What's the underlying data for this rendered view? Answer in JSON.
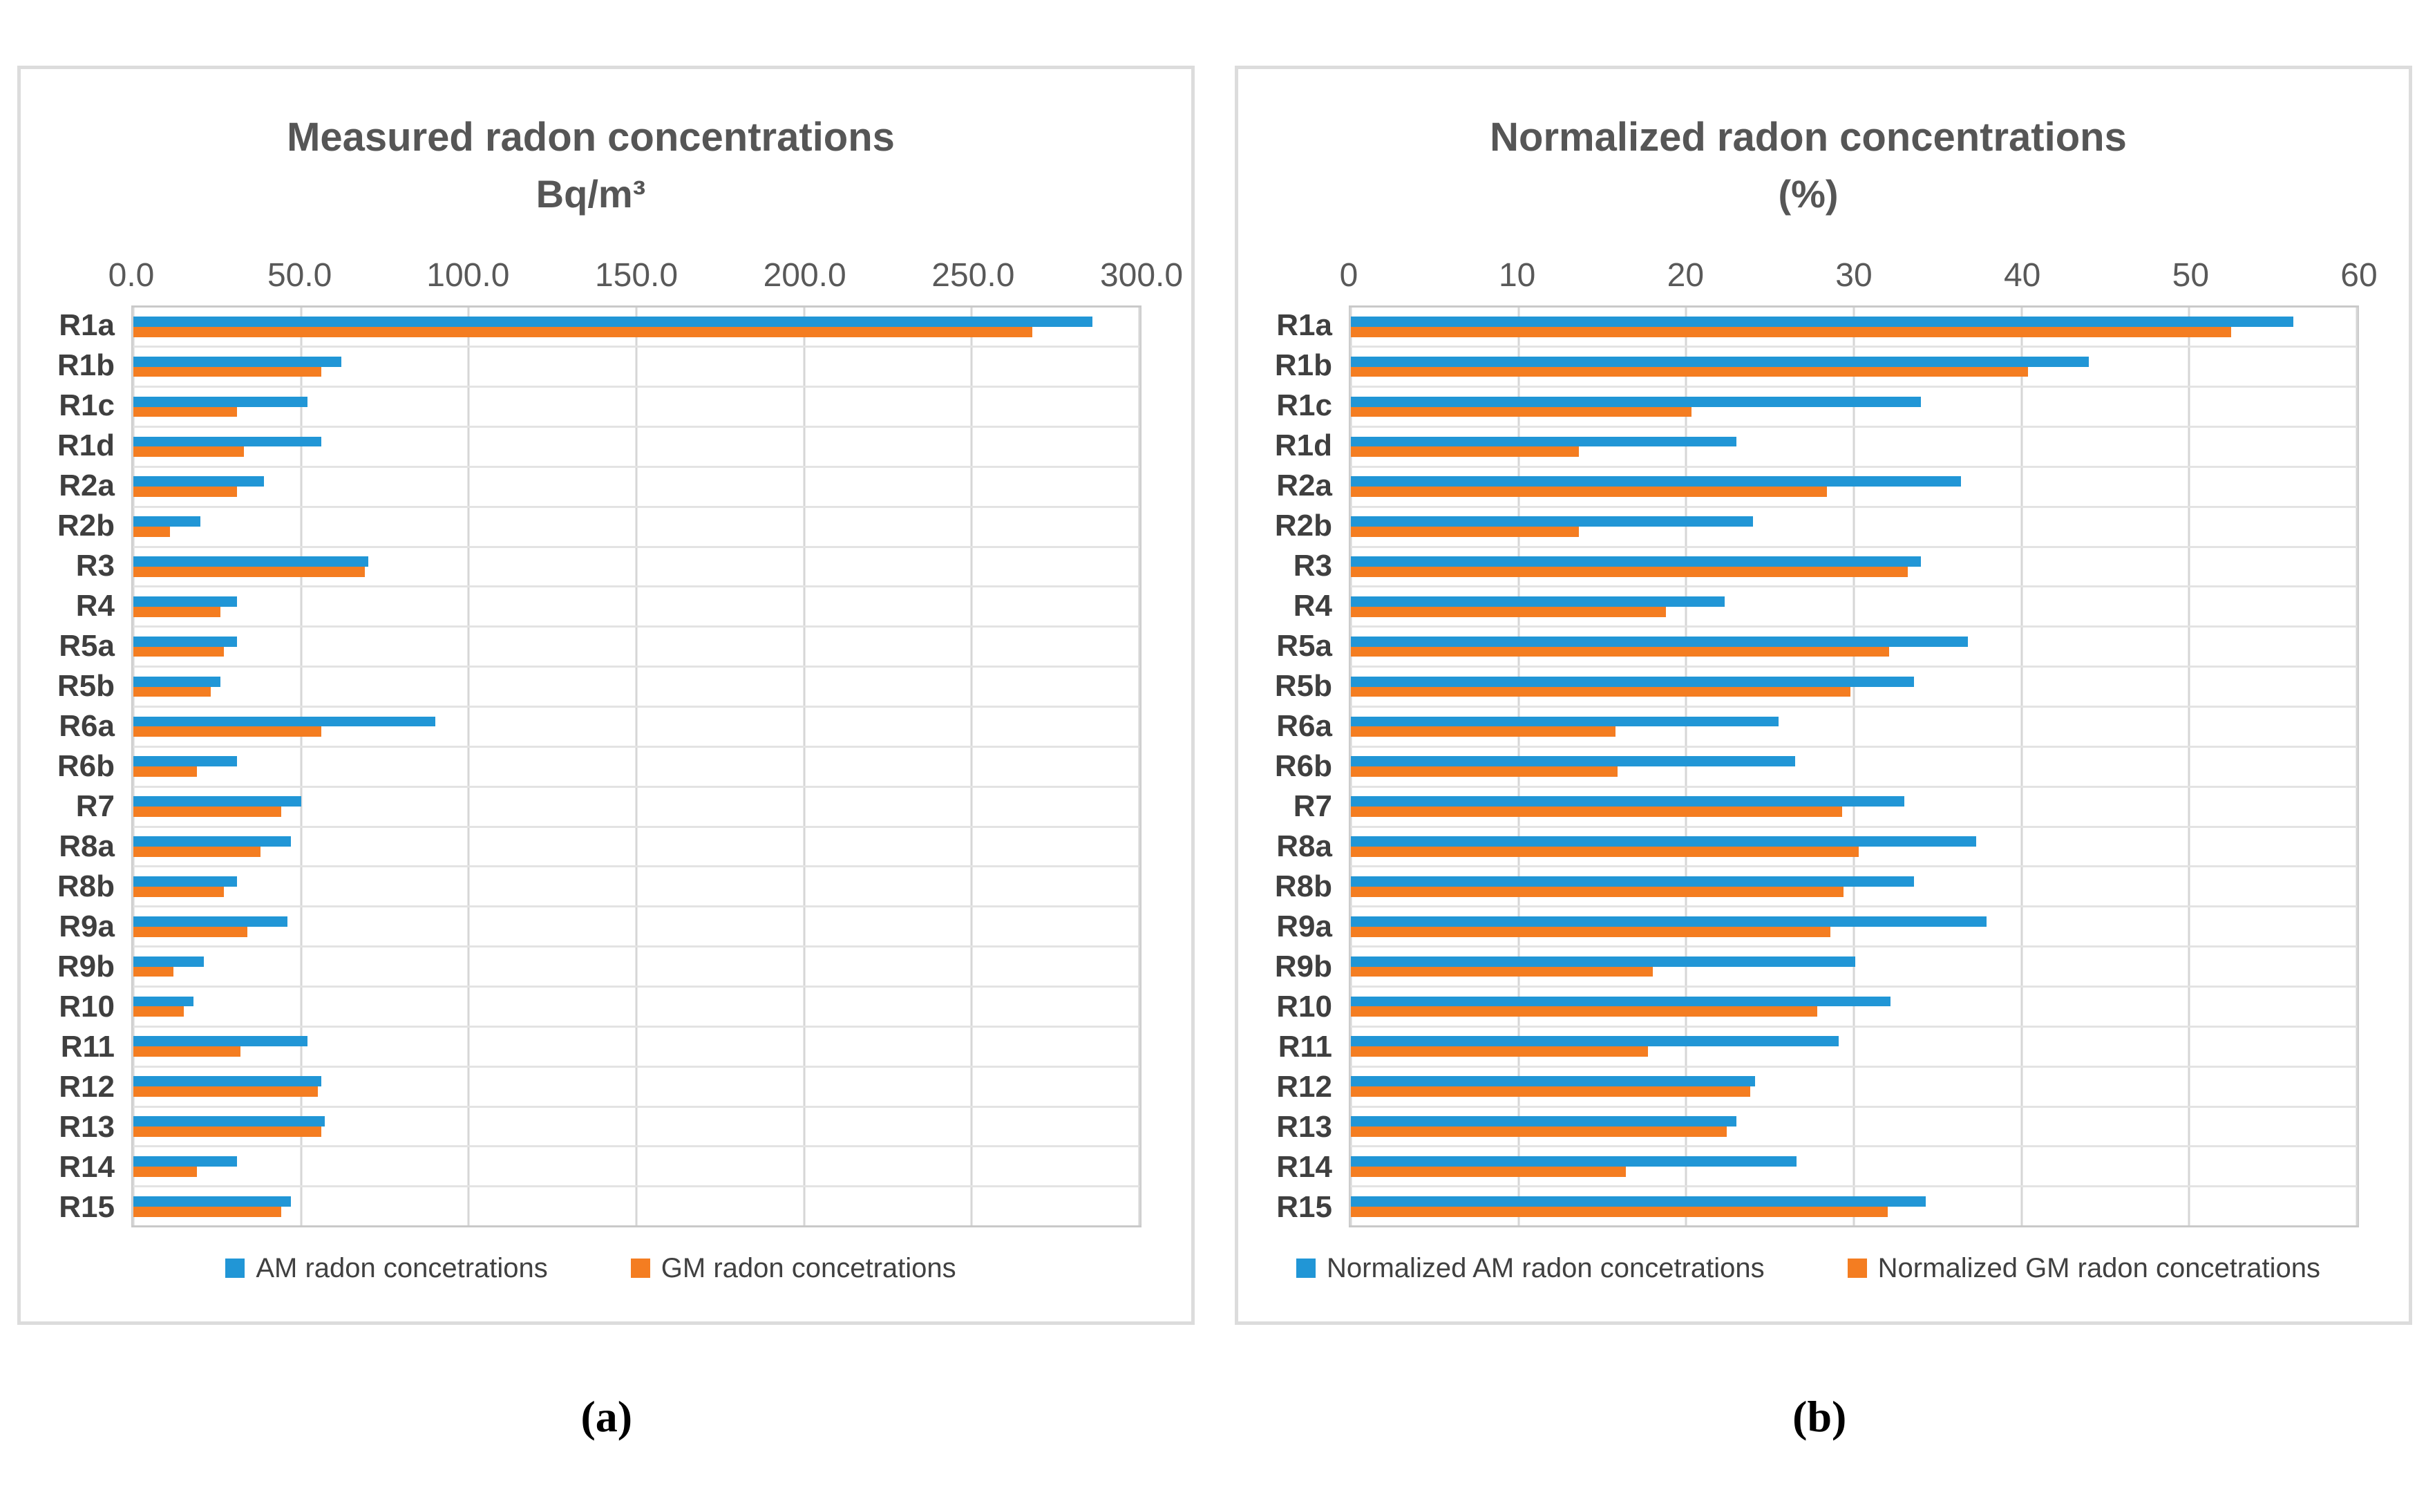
{
  "colors": {
    "am": "#2196D6",
    "gm": "#F47D21",
    "grid": "#D6D6D6",
    "row_line": "#E3E3E3",
    "plot_border": "#C9C9C9",
    "panel_border": "#DCDCDC",
    "tick_text": "#595959",
    "label_text": "#3F3F3F",
    "title_text": "#565656"
  },
  "chart_data": [
    {
      "type": "bar",
      "orientation": "horizontal",
      "title": "Measured radon concentrations",
      "subtitle": "Bq/m³",
      "panel_label": "(a)",
      "grid": true,
      "legend_position": "bottom",
      "xlim": [
        0,
        300
      ],
      "xticks": [
        "0.0",
        "50.0",
        "100.0",
        "150.0",
        "200.0",
        "250.0",
        "300.0"
      ],
      "categories": [
        "R1a",
        "R1b",
        "R1c",
        "R1d",
        "R2a",
        "R2b",
        "R3",
        "R4",
        "R5a",
        "R5b",
        "R6a",
        "R6b",
        "R7",
        "R8a",
        "R8b",
        "R9a",
        "R9b",
        "R10",
        "R11",
        "R12",
        "R13",
        "R14",
        "R15"
      ],
      "series": [
        {
          "name": "AM radon concetrations",
          "color_key": "am",
          "values": [
            286,
            62,
            52,
            56,
            39,
            20,
            70,
            31,
            31,
            26,
            90,
            31,
            50,
            47,
            31,
            46,
            21,
            18,
            52,
            56,
            57,
            31,
            47
          ]
        },
        {
          "name": "GM radon concetrations",
          "color_key": "gm",
          "values": [
            268,
            56,
            31,
            33,
            31,
            11,
            69,
            26,
            27,
            23,
            56,
            19,
            44,
            38,
            27,
            34,
            12,
            15,
            32,
            55,
            56,
            19,
            44
          ]
        }
      ]
    },
    {
      "type": "bar",
      "orientation": "horizontal",
      "title": "Normalized radon concentrations",
      "subtitle": "(%)",
      "panel_label": "(b)",
      "grid": true,
      "legend_position": "bottom",
      "xlim": [
        0,
        60
      ],
      "xticks": [
        "0",
        "10",
        "20",
        "30",
        "40",
        "50",
        "60"
      ],
      "categories": [
        "R1a",
        "R1b",
        "R1c",
        "R1d",
        "R2a",
        "R2b",
        "R3",
        "R4",
        "R5a",
        "R5b",
        "R6a",
        "R6b",
        "R7",
        "R8a",
        "R8b",
        "R9a",
        "R9b",
        "R10",
        "R11",
        "R12",
        "R13",
        "R14",
        "R15"
      ],
      "series": [
        {
          "name": "Normalized AM radon concetrations",
          "color_key": "am",
          "values": [
            56.2,
            44.0,
            34.0,
            23.0,
            36.4,
            24.0,
            34.0,
            22.3,
            36.8,
            33.6,
            25.5,
            26.5,
            33.0,
            37.3,
            33.6,
            37.9,
            30.1,
            32.2,
            29.1,
            24.1,
            23.0,
            26.6,
            34.3
          ]
        },
        {
          "name": "Normalized GM radon concetrations",
          "color_key": "gm",
          "values": [
            52.5,
            40.4,
            20.3,
            13.6,
            28.4,
            13.6,
            33.2,
            18.8,
            32.1,
            29.8,
            15.8,
            15.9,
            29.3,
            30.3,
            29.4,
            28.6,
            18.0,
            27.8,
            17.7,
            23.8,
            22.4,
            16.4,
            32.0
          ]
        }
      ]
    }
  ]
}
